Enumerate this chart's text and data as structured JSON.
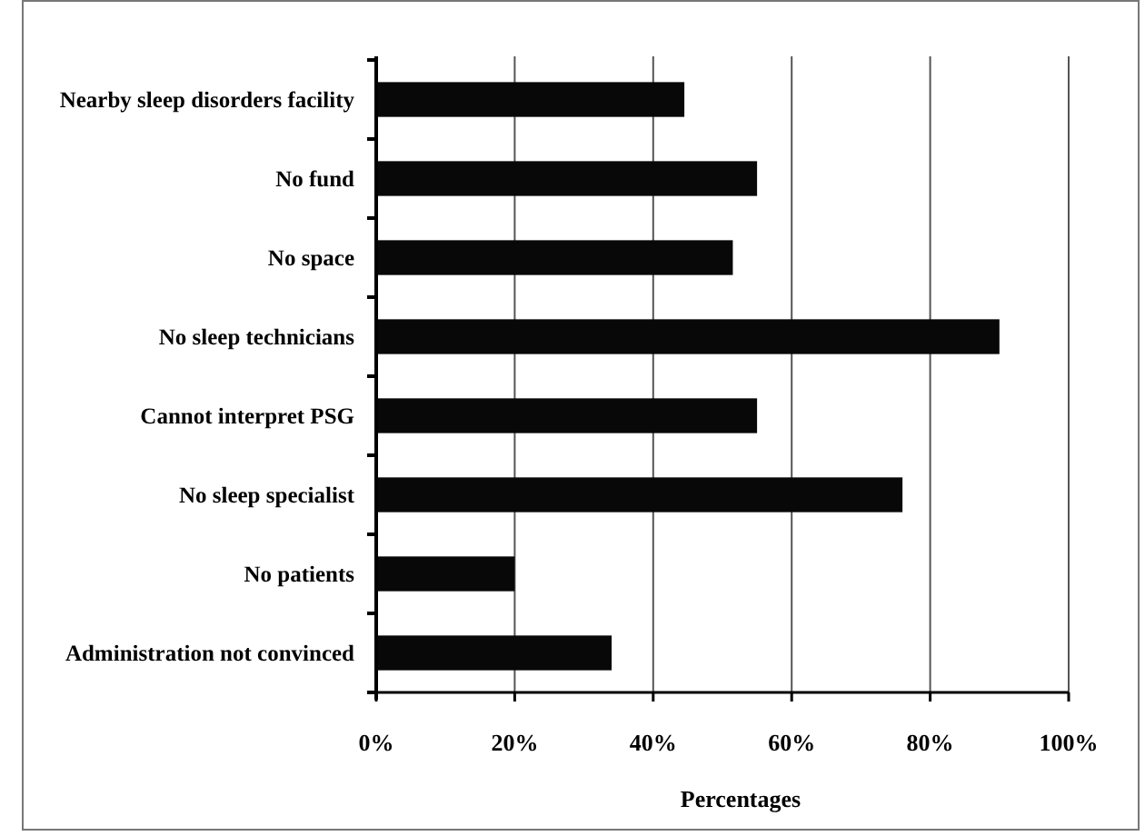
{
  "chart_data": {
    "type": "bar",
    "orientation": "horizontal",
    "categories": [
      "Nearby sleep disorders facility",
      "No fund",
      "No space",
      "No sleep technicians",
      "Cannot interpret PSG",
      "No sleep specialist",
      "No patients",
      "Administration not convinced"
    ],
    "values": [
      44.5,
      55,
      51.5,
      90,
      55,
      76,
      20,
      34
    ],
    "color": "#080808",
    "xlabel": "Percentages",
    "xlim": [
      0,
      100
    ],
    "xticks": [
      {
        "value": 0,
        "label": "0%"
      },
      {
        "value": 20,
        "label": "20%"
      },
      {
        "value": 40,
        "label": "40%"
      },
      {
        "value": 60,
        "label": "60%"
      },
      {
        "value": 80,
        "label": "80%"
      },
      {
        "value": 100,
        "label": "100%"
      }
    ],
    "grid": "x"
  }
}
